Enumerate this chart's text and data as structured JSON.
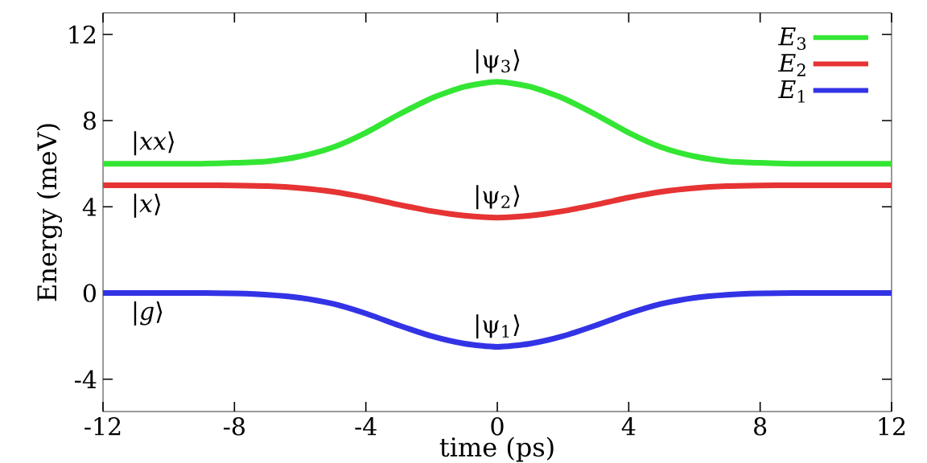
{
  "chart_data": {
    "type": "line",
    "xlabel": "time (ps)",
    "ylabel": "Energy (meV)",
    "x": [
      -12,
      -11,
      -10,
      -9,
      -8,
      -7,
      -6,
      -5,
      -4,
      -3,
      -2,
      -1,
      0,
      1,
      2,
      3,
      4,
      5,
      6,
      7,
      8,
      9,
      10,
      11,
      12
    ],
    "series": [
      {
        "name": "*E*$_{3}$",
        "color": "#33e633",
        "values": [
          6,
          6,
          6,
          6,
          6.04,
          6.11,
          6.34,
          6.76,
          7.44,
          8.28,
          9.04,
          9.57,
          9.8,
          9.57,
          9.04,
          8.28,
          7.44,
          6.76,
          6.34,
          6.11,
          6.04,
          6,
          6,
          6,
          6
        ]
      },
      {
        "name": "*E*$_{2}$",
        "color": "#e63333",
        "values": [
          5,
          5,
          5,
          5,
          4.99,
          4.96,
          4.87,
          4.7,
          4.43,
          4.1,
          3.8,
          3.59,
          3.5,
          3.59,
          3.8,
          4.1,
          4.43,
          4.7,
          4.87,
          4.96,
          4.99,
          5,
          5,
          5,
          5
        ]
      },
      {
        "name": "*E*$_{1}$",
        "color": "#3333e6",
        "values": [
          0,
          0,
          0,
          0,
          -0.02,
          -0.08,
          -0.22,
          -0.5,
          -0.95,
          -1.5,
          -2,
          -2.35,
          -2.5,
          -2.35,
          -2,
          -1.5,
          -0.95,
          -0.5,
          -0.22,
          -0.08,
          -0.02,
          0,
          0,
          0,
          0
        ]
      }
    ],
    "xlim": [
      -12,
      12
    ],
    "ylim": [
      -5.5,
      13
    ],
    "xticks": [
      -12,
      -8,
      -4,
      0,
      4,
      8,
      12
    ],
    "yticks": [
      -4,
      0,
      4,
      8,
      12
    ],
    "legend": "top right",
    "line_style": "solid",
    "marker": "none",
    "annotations": [
      "|*xx*⟩",
      "|*x*⟩",
      "|*g*⟩",
      "|ψ$_{3}$⟩",
      "|ψ$_{2}$⟩",
      "|ψ$_{1}$⟩"
    ]
  }
}
